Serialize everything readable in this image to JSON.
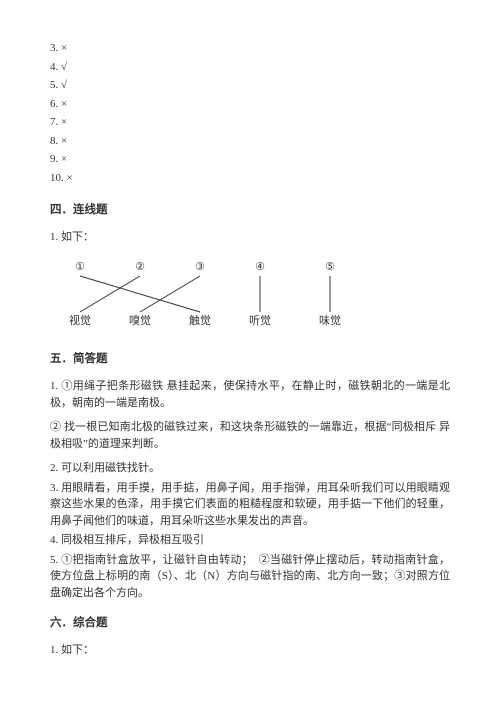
{
  "answerList": {
    "items": [
      {
        "num": "3.",
        "mark": "×"
      },
      {
        "num": "4.",
        "mark": "√"
      },
      {
        "num": "5.",
        "mark": "√"
      },
      {
        "num": "6.",
        "mark": "×"
      },
      {
        "num": "7.",
        "mark": "×"
      },
      {
        "num": "8.",
        "mark": "×"
      },
      {
        "num": "9.",
        "mark": "×"
      },
      {
        "num": "10.",
        "mark": "×"
      }
    ]
  },
  "section4": {
    "title": "四．连线题",
    "sub": "1. 如下：",
    "diagram": {
      "topLabels": [
        "①",
        "②",
        "③",
        "④",
        "⑤"
      ],
      "bottomLabels": [
        "视觉",
        "嗅觉",
        "触觉",
        "听觉",
        "味觉"
      ],
      "topX": [
        30,
        90,
        150,
        210,
        280
      ],
      "bottomX": [
        30,
        90,
        150,
        210,
        280
      ],
      "topY": 12,
      "bottomY": 66,
      "connections": [
        {
          "from": 0,
          "to": 2
        },
        {
          "from": 1,
          "to": 0
        },
        {
          "from": 2,
          "to": 1
        },
        {
          "from": 3,
          "to": 3
        },
        {
          "from": 4,
          "to": 4
        }
      ],
      "lineColor": "#333333",
      "textColor": "#333333",
      "fontSize": 11
    }
  },
  "section5": {
    "title": "五．简答题",
    "items": [
      "1. ①用绳子把条形磁铁 悬挂起来，使保持水平，在静止时，磁铁朝北的一端是北极，朝南的一端是南极。",
      "② 找一根已知南北极的磁铁过来，和这块条形磁铁的一端靠近，根据“同极相斥 异极相吸”的道理来判断。",
      "2. 可以利用磁铁找针。",
      "3. 用眼睛看，用手摸，用手掂，用鼻子闻，用手指弹，用耳朵听我们可以用眼睛观察这些水果的色泽，用手摸它们表面的粗糙程度和软硬，用手掂一下他们的轻重，用鼻子闻他们的味道，用耳朵听这些水果发出的声音。",
      "4. 同极相互排斥，异极相互吸引",
      "5. ①把指南针盒放平，让磁针自由转动；　②当磁针停止摆动后，转动指南针盒，使方位盘上标明的南（S）、北（N）方向与磁针指的南、北方向一致；③对照方位盘确定出各个方向。"
    ]
  },
  "section6": {
    "title": "六．综合题",
    "sub": "1. 如下："
  }
}
